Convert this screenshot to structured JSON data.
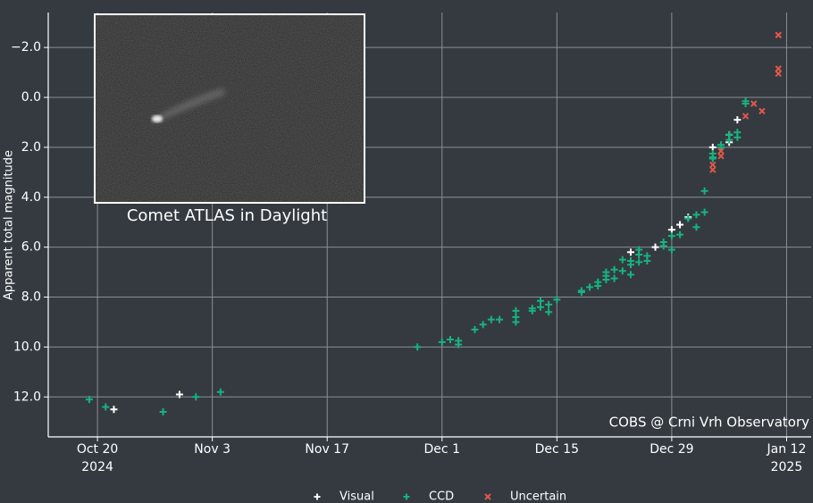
{
  "chart_data": {
    "type": "scatter",
    "y_label": "Apparent total magnitude",
    "annotation": "COBS @ Crni Vrh Observatory",
    "inset_caption": "Comet ATLAS in Daylight",
    "grid": true,
    "legend": "bottom",
    "xlim": [
      "2024-10-14",
      "2025-01-15"
    ],
    "ylim": [
      13.6,
      -3.4
    ],
    "xticks": [
      {
        "value": "2024-10-20",
        "label": "Oct 20\n2024"
      },
      {
        "value": "2024-11-03",
        "label": "Nov 3"
      },
      {
        "value": "2024-11-17",
        "label": "Nov 17"
      },
      {
        "value": "2024-12-01",
        "label": "Dec 1"
      },
      {
        "value": "2024-12-15",
        "label": "Dec 15"
      },
      {
        "value": "2024-12-29",
        "label": "Dec 29"
      },
      {
        "value": "2025-01-12",
        "label": "Jan 12\n2025"
      }
    ],
    "yticks": [
      {
        "value": -2.0,
        "label": "−2.0"
      },
      {
        "value": 0.0,
        "label": "0.0"
      },
      {
        "value": 2.0,
        "label": "2.0"
      },
      {
        "value": 4.0,
        "label": "4.0"
      },
      {
        "value": 6.0,
        "label": "6.0"
      },
      {
        "value": 8.0,
        "label": "8.0"
      },
      {
        "value": 10.0,
        "label": "10.0"
      },
      {
        "value": 12.0,
        "label": "12.0"
      }
    ],
    "series": [
      {
        "name": "Visual",
        "color": "#ffffff",
        "marker": "plus",
        "x": [
          "2024-10-22",
          "2024-10-30",
          "2024-12-24",
          "2024-12-27",
          "2024-12-29",
          "2024-12-30",
          "2024-12-31",
          "2025-01-03",
          "2025-01-05",
          "2025-01-05",
          "2025-01-06"
        ],
        "values": [
          12.5,
          11.9,
          6.2,
          6.0,
          5.3,
          5.1,
          4.8,
          2.0,
          1.8,
          1.5,
          0.9
        ]
      },
      {
        "name": "CCD",
        "color": "#18b27f",
        "marker": "plus",
        "x": [
          "2024-10-19",
          "2024-10-21",
          "2024-10-28",
          "2024-11-01",
          "2024-11-04",
          "2024-11-28",
          "2024-12-01",
          "2024-12-02",
          "2024-12-03",
          "2024-12-03",
          "2024-12-05",
          "2024-12-06",
          "2024-12-07",
          "2024-12-08",
          "2024-12-10",
          "2024-12-10",
          "2024-12-10",
          "2024-12-12",
          "2024-12-12",
          "2024-12-13",
          "2024-12-13",
          "2024-12-14",
          "2024-12-14",
          "2024-12-15",
          "2024-12-18",
          "2024-12-18",
          "2024-12-19",
          "2024-12-20",
          "2024-12-20",
          "2024-12-21",
          "2024-12-21",
          "2024-12-21",
          "2024-12-22",
          "2024-12-22",
          "2024-12-23",
          "2024-12-23",
          "2024-12-24",
          "2024-12-24",
          "2024-12-24",
          "2024-12-25",
          "2024-12-25",
          "2024-12-25",
          "2024-12-26",
          "2024-12-26",
          "2024-12-28",
          "2024-12-28",
          "2024-12-29",
          "2024-12-29",
          "2024-12-30",
          "2024-12-31",
          "2025-01-01",
          "2025-01-01",
          "2025-01-02",
          "2025-01-02",
          "2025-01-03",
          "2025-01-03",
          "2025-01-03",
          "2025-01-04",
          "2025-01-04",
          "2025-01-05",
          "2025-01-05",
          "2025-01-06",
          "2025-01-06",
          "2025-01-07",
          "2025-01-07"
        ],
        "values": [
          12.1,
          12.4,
          12.6,
          12.0,
          11.8,
          10.0,
          9.8,
          9.7,
          9.75,
          9.9,
          9.3,
          9.1,
          8.9,
          8.9,
          8.8,
          9.0,
          8.55,
          8.45,
          8.55,
          8.15,
          8.4,
          8.3,
          8.6,
          8.1,
          7.75,
          7.8,
          7.6,
          7.4,
          7.55,
          7.15,
          7.3,
          7.0,
          6.9,
          7.25,
          6.95,
          6.5,
          6.55,
          7.1,
          6.7,
          6.3,
          6.6,
          6.1,
          6.55,
          6.35,
          5.95,
          5.8,
          6.1,
          5.55,
          5.5,
          4.85,
          5.2,
          4.7,
          4.6,
          3.75,
          2.4,
          2.25,
          2.45,
          2.0,
          1.9,
          1.5,
          1.7,
          1.4,
          1.6,
          0.15,
          0.25
        ]
      },
      {
        "name": "Uncertain",
        "color": "#e0574a",
        "marker": "x",
        "x": [
          "2025-01-03",
          "2025-01-03",
          "2025-01-04",
          "2025-01-04",
          "2025-01-07",
          "2025-01-08",
          "2025-01-09",
          "2025-01-11",
          "2025-01-11",
          "2025-01-11",
          "2025-01-11"
        ],
        "values": [
          2.7,
          2.9,
          2.15,
          2.35,
          0.75,
          0.25,
          0.55,
          -2.5,
          -2.5,
          -1.15,
          -0.95
        ]
      }
    ]
  }
}
